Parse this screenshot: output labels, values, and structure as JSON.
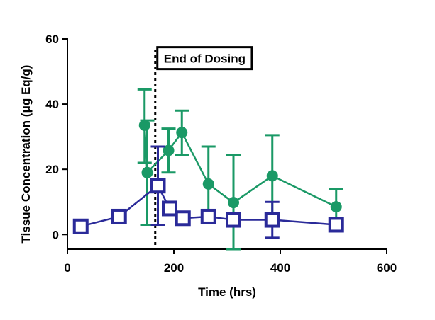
{
  "chart_data": {
    "type": "scatter",
    "xlabel": "Time  (hrs)",
    "ylabel": "Tissue Concentration (μg Eq/g)",
    "xlim": [
      0,
      600
    ],
    "ylim": [
      -4.5,
      60
    ],
    "xticks": [
      0,
      200,
      400,
      600
    ],
    "yticks": [
      0,
      20,
      40,
      60
    ],
    "xtick_labels": [
      "0",
      "200",
      "400",
      "600"
    ],
    "ytick_labels": [
      "0",
      "20",
      "40",
      "60"
    ],
    "grid": false,
    "legend": "none",
    "series": [
      {
        "marker": "circle",
        "color": "#1a9966",
        "line": true,
        "points": [
          {
            "x": 145,
            "y": 33.5,
            "err_hi": 44.5,
            "err_lo": 22
          },
          {
            "x": 150,
            "y": 19,
            "err_hi": 35,
            "err_lo": 3
          },
          {
            "x": 190,
            "y": 25.8,
            "err_hi": 32.5,
            "err_lo": 19
          },
          {
            "x": 215,
            "y": 31.3,
            "err_hi": 38,
            "err_lo": 24.5
          },
          {
            "x": 265,
            "y": 15.5,
            "err_hi": 27,
            "err_lo": 4
          },
          {
            "x": 312,
            "y": 9.8,
            "err_hi": 24.5,
            "err_lo": -4.5
          },
          {
            "x": 385,
            "y": 18,
            "err_hi": 30.5,
            "err_lo": 5.5
          },
          {
            "x": 505,
            "y": 8.5,
            "err_hi": 14,
            "err_lo": 3
          }
        ]
      },
      {
        "marker": "square",
        "color": "#2a2a99",
        "line": true,
        "points": [
          {
            "x": 25,
            "y": 2.5,
            "err_hi": null,
            "err_lo": null
          },
          {
            "x": 97,
            "y": 5.5,
            "err_hi": null,
            "err_lo": null
          },
          {
            "x": 170,
            "y": 15,
            "err_hi": 27,
            "err_lo": 3
          },
          {
            "x": 192,
            "y": 8,
            "err_hi": null,
            "err_lo": null
          },
          {
            "x": 217,
            "y": 5,
            "err_hi": null,
            "err_lo": null
          },
          {
            "x": 265,
            "y": 5.5,
            "err_hi": null,
            "err_lo": null
          },
          {
            "x": 312,
            "y": 4.5,
            "err_hi": null,
            "err_lo": null
          },
          {
            "x": 385,
            "y": 4.5,
            "err_hi": 10,
            "err_lo": -1
          },
          {
            "x": 505,
            "y": 3,
            "err_hi": 5,
            "err_lo": 1
          }
        ]
      }
    ],
    "annotations": [
      {
        "type": "vline",
        "x": 165,
        "style": "dotted",
        "color": "#000000"
      },
      {
        "type": "label",
        "text": "End of Dosing",
        "boxed": true,
        "x": 165,
        "y": 54
      }
    ]
  }
}
